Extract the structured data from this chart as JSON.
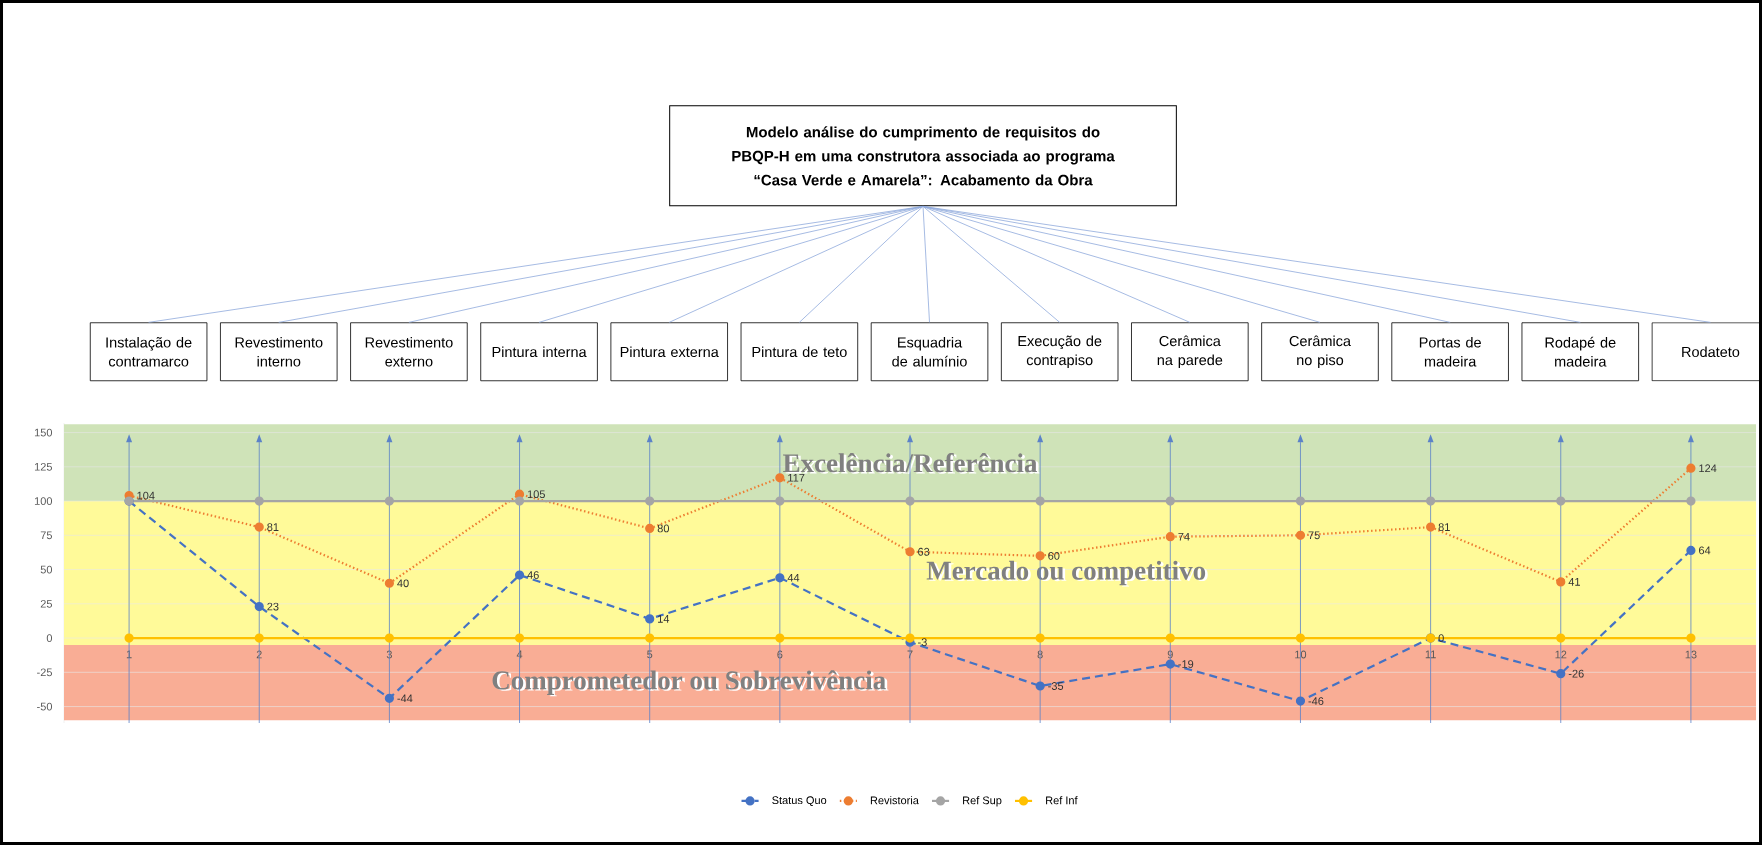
{
  "chart_data": {
    "type": "line",
    "title": "Modelo análise do cumprimento de requisitos do PBQP-H em uma construtora associada  ao programa “Casa Verde e Amarela”: Acabamento da Obra",
    "annotations": [
      "Instalação de contramarco",
      "Revestimento interno",
      "Revestimento externo",
      "Pintura interna",
      "Pintura externa",
      "Pintura de teto",
      "Esquadria de alumínio",
      "Execução de contrapiso",
      "Cerâmica na parede",
      "Cerâmica no piso",
      "Portas de madeira",
      "Rodapé de madeira",
      "Rodateto"
    ],
    "x": [
      1,
      2,
      3,
      4,
      5,
      6,
      7,
      8,
      9,
      10,
      11,
      12,
      13
    ],
    "xlim": [
      0.5,
      13.5
    ],
    "xticks": [
      1,
      2,
      3,
      4,
      5,
      6,
      7,
      8,
      9,
      10,
      11,
      12,
      13
    ],
    "ylim": [
      -62,
      157
    ],
    "yticks": [
      -50,
      -25,
      0,
      25,
      50,
      75,
      100,
      125,
      150
    ],
    "grid": "y",
    "legend": "bottom",
    "marker": "circle",
    "series": [
      {
        "name": "Status Quo",
        "color": "#4472c4",
        "line_style": "dashed",
        "values": [
          100,
          23,
          -44,
          46,
          14,
          44,
          -3,
          -35,
          -19,
          -46,
          0,
          -26,
          64
        ],
        "value_labels": [
          null,
          "23",
          "-44",
          "46",
          "14",
          "44",
          "-3",
          "-35",
          "-19",
          "-46",
          "0",
          "-26",
          "64"
        ]
      },
      {
        "name": "Revistoria",
        "color": "#ed7d31",
        "line_style": "dotted",
        "values": [
          104,
          81,
          40,
          105,
          80,
          117,
          63,
          60,
          74,
          75,
          81,
          41,
          124
        ],
        "value_labels": [
          "104",
          "81",
          "40",
          "105",
          "80",
          "117",
          "63",
          "60",
          "74",
          "75",
          "81",
          "41",
          "124"
        ]
      },
      {
        "name": "Ref Sup",
        "color": "#a5a5a5",
        "line_style": "solid",
        "values": [
          100,
          100,
          100,
          100,
          100,
          100,
          100,
          100,
          100,
          100,
          100,
          100,
          100
        ]
      },
      {
        "name": "Ref Inf",
        "color": "#ffc000",
        "line_style": "solid",
        "values": [
          0,
          0,
          0,
          0,
          0,
          0,
          0,
          0,
          0,
          0,
          0,
          0,
          0
        ]
      }
    ],
    "bands": [
      {
        "axis": "y",
        "from": 100,
        "to": 156,
        "label": "Excelência/Referência",
        "color": "#cfe3b8"
      },
      {
        "axis": "y",
        "from": -5,
        "to": 100,
        "label": "Mercado ou competitivo",
        "color": "#fffa99"
      },
      {
        "axis": "y",
        "from": -60,
        "to": -5,
        "label": "Comprometedor ou Sobrevivência",
        "color": "#f9ad95"
      }
    ],
    "ref_lines": [
      {
        "axis": "x",
        "value": 1,
        "color": "#5b82c8"
      },
      {
        "axis": "x",
        "value": 2,
        "color": "#5b82c8"
      },
      {
        "axis": "x",
        "value": 3,
        "color": "#5b82c8"
      },
      {
        "axis": "x",
        "value": 4,
        "color": "#5b82c8"
      },
      {
        "axis": "x",
        "value": 5,
        "color": "#5b82c8"
      },
      {
        "axis": "x",
        "value": 6,
        "color": "#5b82c8"
      },
      {
        "axis": "x",
        "value": 7,
        "color": "#5b82c8"
      },
      {
        "axis": "x",
        "value": 8,
        "color": "#5b82c8"
      },
      {
        "axis": "x",
        "value": 9,
        "color": "#5b82c8"
      },
      {
        "axis": "x",
        "value": 10,
        "color": "#5b82c8"
      },
      {
        "axis": "x",
        "value": 11,
        "color": "#5b82c8"
      },
      {
        "axis": "x",
        "value": 12,
        "color": "#5b82c8"
      },
      {
        "axis": "x",
        "value": 13,
        "color": "#5b82c8"
      }
    ]
  }
}
